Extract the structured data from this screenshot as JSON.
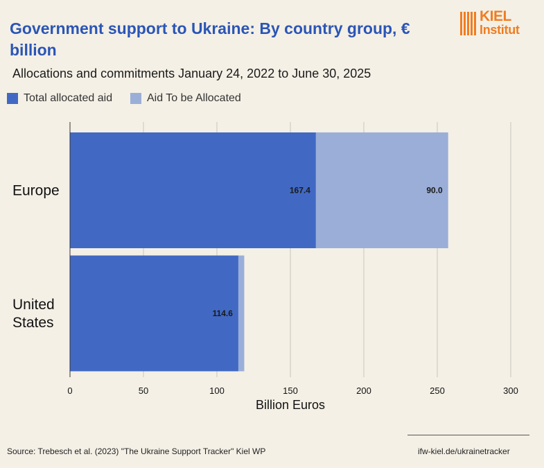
{
  "title": "Government support to Ukraine: By country group, € billion",
  "subtitle": "Allocations and commitments January 24, 2022 to June 30, 2025",
  "logo": {
    "line1": "KIEL",
    "line2": "Institut"
  },
  "source": "Source: Trebesch et al. (2023) \"The Ukraine Support Tracker\" Kiel WP",
  "website": "ifw-kiel.de/ukrainetracker",
  "colors": {
    "allocated": "#4169c4",
    "to_be_allocated": "#9aaed8",
    "title": "#2b55b5",
    "logo": "#f07d21",
    "background": "#f4f0e6"
  },
  "chart_data": {
    "type": "bar",
    "orientation": "horizontal",
    "stacked": true,
    "categories": [
      "Europe",
      "United States"
    ],
    "series": [
      {
        "name": "Total allocated aid",
        "values": [
          167.4,
          114.6
        ],
        "labels": [
          "167.4",
          "114.6"
        ]
      },
      {
        "name": "Aid To be Allocated",
        "values": [
          90.0,
          4.0
        ],
        "labels": [
          "90.0",
          ""
        ]
      }
    ],
    "xlabel": "Billion Euros",
    "xlim": [
      0,
      300
    ],
    "xticks": [
      0,
      50,
      100,
      150,
      200,
      250,
      300
    ],
    "grid": "vertical",
    "legend": "top-left"
  }
}
